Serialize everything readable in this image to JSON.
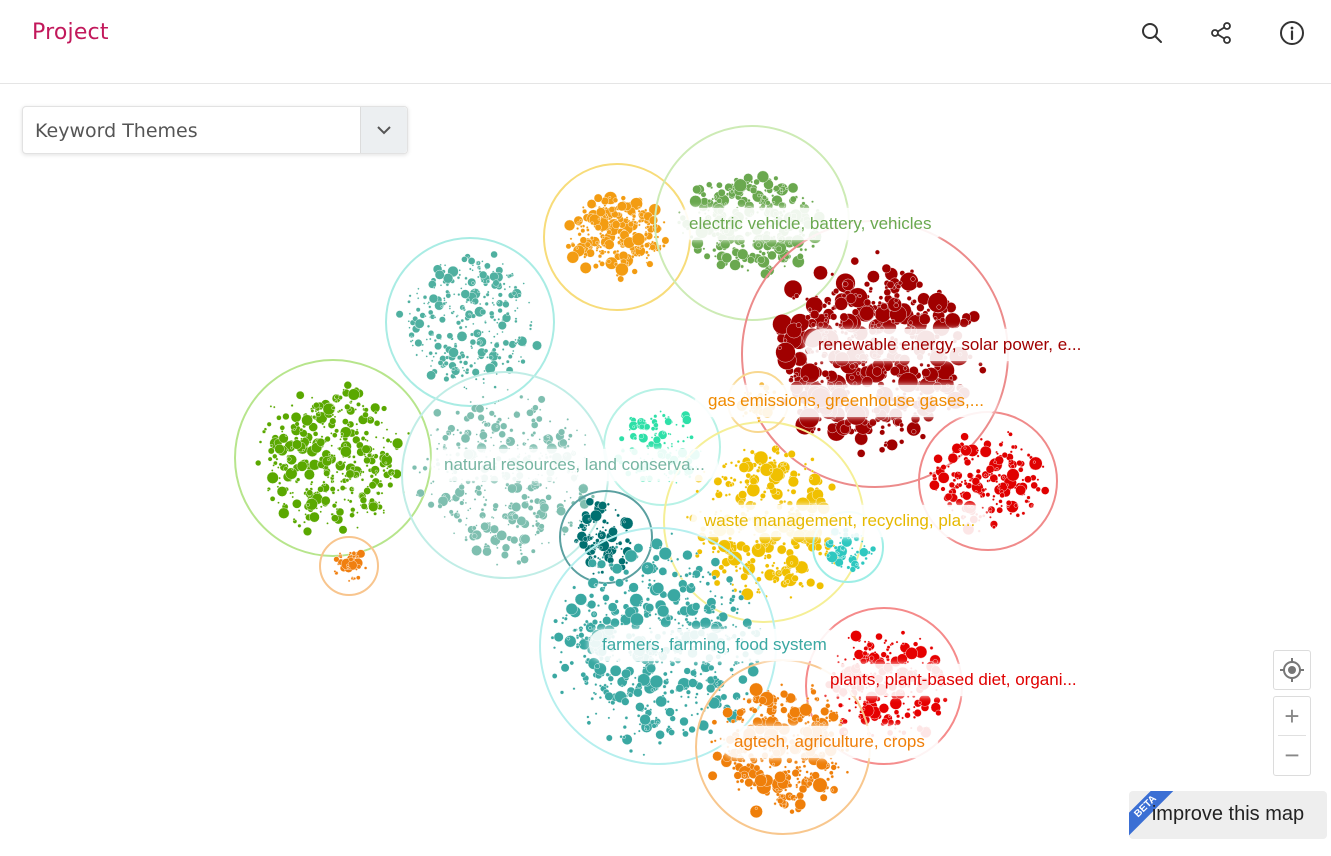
{
  "header": {
    "title": "Project",
    "icons": [
      "search-icon",
      "share-icon",
      "info-icon"
    ]
  },
  "theme_selector": {
    "value": "Keyword Themes"
  },
  "clusters": [
    {
      "label": "electric vehicle, battery, vehicles",
      "color": "#6aa84f"
    },
    {
      "label": "renewable energy, solar power, e...",
      "color": "#a00000"
    },
    {
      "label": "gas emissions, greenhouse gases,...",
      "color": "#ef8a00"
    },
    {
      "label": "natural resources, land conserva...",
      "color": "#76b5a2"
    },
    {
      "label": "waste management, recycling, pla...",
      "color": "#e6b800"
    },
    {
      "label": "farmers, farming, food system",
      "color": "#3aa8a2"
    },
    {
      "label": "plants, plant-based diet, organi...",
      "color": "#e00000"
    },
    {
      "label": "agtech, agriculture, crops",
      "color": "#ef7f0a"
    }
  ],
  "controls": {
    "locate_icon": "crosshair-icon",
    "zoom_in": "+",
    "zoom_out": "−"
  },
  "improve": {
    "label": "improve this map",
    "badge": "BETA"
  }
}
